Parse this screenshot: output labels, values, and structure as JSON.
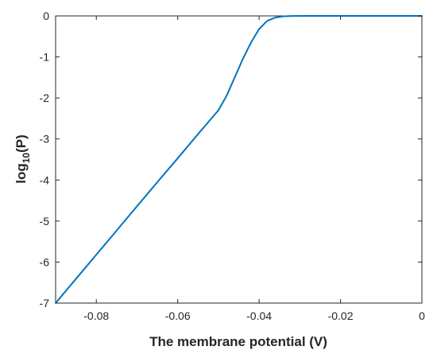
{
  "chart_data": {
    "type": "line",
    "title": "",
    "xlabel": "The membrane potential (V)",
    "ylabel": {
      "base": "log",
      "subscript": "10",
      "rest": "(P)"
    },
    "xlim": [
      -0.09,
      0
    ],
    "ylim": [
      -7,
      0
    ],
    "xticks": [
      -0.08,
      -0.06,
      -0.04,
      -0.02,
      0
    ],
    "xtick_labels": [
      "-0.08",
      "-0.06",
      "-0.04",
      "-0.02",
      "0"
    ],
    "yticks": [
      0,
      -1,
      -2,
      -3,
      -4,
      -5,
      -6,
      -7
    ],
    "ytick_labels": [
      "0",
      "-1",
      "-2",
      "-3",
      "-4",
      "-5",
      "-6",
      "-7"
    ],
    "grid": false,
    "series": [
      {
        "color": "#0072BD",
        "x": [
          -0.09,
          -0.085,
          -0.08,
          -0.075,
          -0.07,
          -0.065,
          -0.06,
          -0.055,
          -0.05,
          -0.048,
          -0.046,
          -0.044,
          -0.042,
          -0.04,
          -0.038,
          -0.036,
          -0.034,
          -0.032,
          -0.03,
          -0.025,
          -0.02,
          -0.01,
          0
        ],
        "y": [
          -7.0,
          -6.41,
          -5.82,
          -5.23,
          -4.64,
          -4.05,
          -3.47,
          -2.88,
          -2.3,
          -1.95,
          -1.5,
          -1.05,
          -0.65,
          -0.32,
          -0.12,
          -0.04,
          -0.01,
          -0.002,
          0,
          0,
          0,
          0,
          0
        ]
      }
    ]
  }
}
